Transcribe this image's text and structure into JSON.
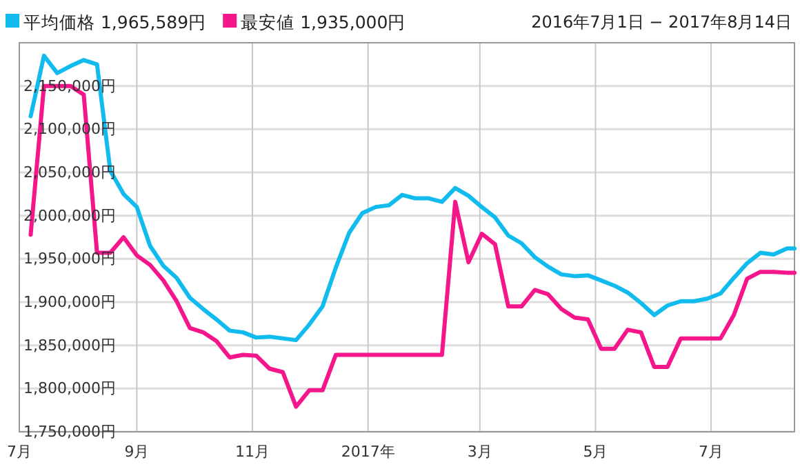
{
  "chart_data": {
    "type": "line",
    "x": [
      "2016-07-07",
      "2016-07-14",
      "2016-07-21",
      "2016-07-28",
      "2016-08-04",
      "2016-08-11",
      "2016-08-18",
      "2016-08-25",
      "2016-09-01",
      "2016-09-08",
      "2016-09-15",
      "2016-09-22",
      "2016-09-29",
      "2016-10-06",
      "2016-10-13",
      "2016-10-20",
      "2016-10-27",
      "2016-11-03",
      "2016-11-10",
      "2016-11-17",
      "2016-11-24",
      "2016-12-01",
      "2016-12-08",
      "2016-12-15",
      "2016-12-22",
      "2016-12-29",
      "2017-01-05",
      "2017-01-12",
      "2017-01-19",
      "2017-01-26",
      "2017-02-02",
      "2017-02-09",
      "2017-02-16",
      "2017-02-23",
      "2017-03-02",
      "2017-03-09",
      "2017-03-16",
      "2017-03-23",
      "2017-03-30",
      "2017-04-06",
      "2017-04-13",
      "2017-04-20",
      "2017-04-27",
      "2017-05-04",
      "2017-05-11",
      "2017-05-18",
      "2017-05-25",
      "2017-06-01",
      "2017-06-08",
      "2017-06-15",
      "2017-06-22",
      "2017-06-29",
      "2017-07-06",
      "2017-07-13",
      "2017-07-20",
      "2017-07-27",
      "2017-08-03",
      "2017-08-10",
      "2017-08-14"
    ],
    "series": [
      {
        "name": "平均価格 1,965,589円",
        "color": "#11bbee",
        "values": [
          2115000,
          2185000,
          2165000,
          2173000,
          2180000,
          2175000,
          2052000,
          2025000,
          2010000,
          1965000,
          1942000,
          1928000,
          1905000,
          1892000,
          1880000,
          1867000,
          1865000,
          1859000,
          1860000,
          1858000,
          1856000,
          1874000,
          1895000,
          1940000,
          1980000,
          2003000,
          2010000,
          2012000,
          2024000,
          2020000,
          2020000,
          2016000,
          2032000,
          2023000,
          2010000,
          1998000,
          1977000,
          1968000,
          1952000,
          1941000,
          1932000,
          1930000,
          1931000,
          1925000,
          1919000,
          1911000,
          1899000,
          1885000,
          1896000,
          1901000,
          1901000,
          1904000,
          1910000,
          1928000,
          1945000,
          1957000,
          1955000,
          1962000,
          1962000
        ]
      },
      {
        "name": "最安値 1,935,000円",
        "color": "#f5168c",
        "values": [
          1978000,
          2150000,
          2150000,
          2150000,
          2140000,
          1957000,
          1957000,
          1975000,
          1954000,
          1943000,
          1925000,
          1901000,
          1870000,
          1865000,
          1855000,
          1836000,
          1839000,
          1838000,
          1823000,
          1819000,
          1779000,
          1798000,
          1798000,
          1839000,
          1839000,
          1839000,
          1839000,
          1839000,
          1839000,
          1839000,
          1839000,
          1839000,
          2016000,
          1946000,
          1979000,
          1967000,
          1895000,
          1895000,
          1914000,
          1909000,
          1892000,
          1882000,
          1880000,
          1846000,
          1846000,
          1868000,
          1865000,
          1825000,
          1825000,
          1858000,
          1858000,
          1858000,
          1858000,
          1885000,
          1927000,
          1935000,
          1935000,
          1934000,
          1934000
        ]
      }
    ],
    "xlim": [
      "2016-07-01",
      "2017-08-14"
    ],
    "xticks": [
      {
        "value": "2016-07-01",
        "label": "7月"
      },
      {
        "value": "2016-09-01",
        "label": "9月"
      },
      {
        "value": "2016-11-01",
        "label": "11月"
      },
      {
        "value": "2017-01-01",
        "label": "2017年"
      },
      {
        "value": "2017-03-01",
        "label": "3月"
      },
      {
        "value": "2017-05-01",
        "label": "5月"
      },
      {
        "value": "2017-07-01",
        "label": "7月"
      }
    ],
    "ylim": [
      1750000,
      2200000
    ],
    "yticks": [
      {
        "value": 1750000,
        "label": "1,750,000円"
      },
      {
        "value": 1800000,
        "label": "1,800,000円"
      },
      {
        "value": 1850000,
        "label": "1,850,000円"
      },
      {
        "value": 1900000,
        "label": "1,900,000円"
      },
      {
        "value": 1950000,
        "label": "1,950,000円"
      },
      {
        "value": 2000000,
        "label": "2,000,000円"
      },
      {
        "value": 2050000,
        "label": "2,050,000円"
      },
      {
        "value": 2100000,
        "label": "2,100,000円"
      },
      {
        "value": 2150000,
        "label": "2,150,000円"
      }
    ],
    "grid": true,
    "legend": "top left",
    "marker": "none",
    "line_style": "solid",
    "annotations": [
      "2016年7月1日 − 2017年8月14日"
    ]
  }
}
